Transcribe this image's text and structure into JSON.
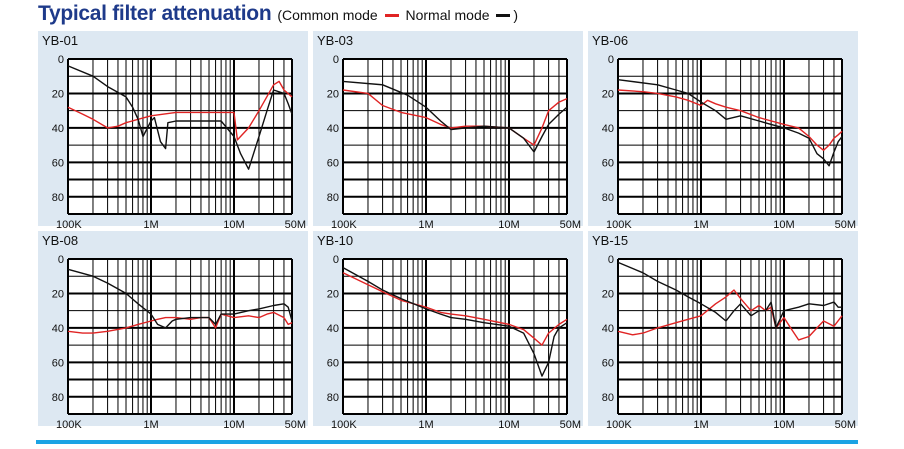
{
  "header": {
    "title": "Typical filter attenuation",
    "legend_prefix": "(Common mode",
    "legend_middle": "Normal mode",
    "legend_suffix": ")"
  },
  "colors": {
    "common_mode": "#e02424",
    "normal_mode": "#111111",
    "panel_bg": "#dde8f2",
    "rule": "#1ba3e4"
  },
  "chart_data": [
    {
      "type": "line",
      "title": "YB-01",
      "x_ticks": [
        "100K",
        "1M",
        "10M",
        "50M"
      ],
      "y_ticks": [
        "0",
        "20",
        "40",
        "60",
        "80"
      ],
      "xlim": [
        "100K",
        "50M"
      ],
      "ylim": [
        0,
        90
      ],
      "x_scale": "log",
      "y_inverted": true,
      "series": [
        {
          "name": "Common mode",
          "color": "#e02424",
          "x": [
            0.1,
            0.15,
            0.2,
            0.3,
            0.4,
            0.5,
            0.7,
            1,
            2,
            5,
            10,
            11,
            15,
            20,
            30,
            35,
            40,
            50
          ],
          "y": [
            28,
            32,
            35,
            40,
            39,
            37,
            35,
            33,
            31,
            31,
            31,
            47,
            40,
            30,
            15,
            13,
            18,
            22
          ]
        },
        {
          "name": "Normal mode",
          "color": "#111111",
          "x": [
            0.1,
            0.2,
            0.3,
            0.5,
            0.6,
            0.7,
            0.8,
            1,
            1.1,
            1.3,
            1.5,
            1.6,
            2,
            5,
            7,
            10,
            12,
            15,
            20,
            25,
            30,
            40,
            45,
            50
          ],
          "y": [
            4,
            10,
            16,
            22,
            28,
            35,
            45,
            36,
            34,
            48,
            52,
            37,
            36,
            36,
            36,
            45,
            55,
            64,
            45,
            30,
            18,
            20,
            26,
            32
          ]
        }
      ]
    },
    {
      "type": "line",
      "title": "YB-03",
      "x_ticks": [
        "100K",
        "1M",
        "10M",
        "50M"
      ],
      "y_ticks": [
        "0",
        "20",
        "40",
        "60",
        "80"
      ],
      "xlim": [
        "100K",
        "50M"
      ],
      "ylim": [
        0,
        90
      ],
      "x_scale": "log",
      "y_inverted": true,
      "series": [
        {
          "name": "Common mode",
          "color": "#e02424",
          "x": [
            0.1,
            0.2,
            0.3,
            0.5,
            1,
            1.5,
            2,
            3,
            5,
            10,
            15,
            20,
            25,
            30,
            40,
            50
          ],
          "y": [
            18,
            20,
            27,
            31,
            34,
            38,
            40,
            39,
            39,
            40,
            46,
            50,
            40,
            30,
            25,
            23
          ]
        },
        {
          "name": "Normal mode",
          "color": "#111111",
          "x": [
            0.1,
            0.3,
            0.6,
            1,
            1.5,
            2,
            3,
            5,
            10,
            15,
            20,
            25,
            30,
            40,
            50
          ],
          "y": [
            13,
            15,
            21,
            28,
            36,
            41,
            40,
            39,
            40,
            46,
            54,
            45,
            38,
            32,
            28
          ]
        }
      ]
    },
    {
      "type": "line",
      "title": "YB-06",
      "x_ticks": [
        "100K",
        "1M",
        "10M",
        "50M"
      ],
      "y_ticks": [
        "0",
        "20",
        "40",
        "60",
        "80"
      ],
      "xlim": [
        "100K",
        "50M"
      ],
      "ylim": [
        0,
        90
      ],
      "x_scale": "log",
      "y_inverted": true,
      "series": [
        {
          "name": "Common mode",
          "color": "#e02424",
          "x": [
            0.1,
            0.2,
            0.3,
            0.5,
            0.7,
            1,
            1.2,
            1.5,
            2,
            3,
            5,
            10,
            15,
            20,
            25,
            30,
            35,
            40,
            45,
            50
          ],
          "y": [
            18,
            19,
            20,
            22,
            24,
            27,
            24,
            26,
            28,
            30,
            34,
            38,
            40,
            45,
            50,
            53,
            50,
            46,
            44,
            42
          ]
        },
        {
          "name": "Normal mode",
          "color": "#111111",
          "x": [
            0.1,
            0.3,
            0.5,
            0.7,
            1,
            1.5,
            2,
            3,
            5,
            7,
            10,
            15,
            20,
            25,
            30,
            35,
            40,
            45,
            50
          ],
          "y": [
            12,
            15,
            18,
            20,
            25,
            30,
            35,
            33,
            36,
            38,
            40,
            43,
            46,
            55,
            58,
            62,
            54,
            48,
            45
          ]
        }
      ]
    },
    {
      "type": "line",
      "title": "YB-08",
      "x_ticks": [
        "100K",
        "1M",
        "10M",
        "50M"
      ],
      "y_ticks": [
        "0",
        "20",
        "40",
        "60",
        "80"
      ],
      "xlim": [
        "100K",
        "50M"
      ],
      "ylim": [
        0,
        90
      ],
      "x_scale": "log",
      "y_inverted": true,
      "series": [
        {
          "name": "Common mode",
          "color": "#e02424",
          "x": [
            0.1,
            0.15,
            0.2,
            0.3,
            0.5,
            0.7,
            1,
            1.2,
            1.5,
            2,
            3,
            4,
            5,
            6,
            7,
            10,
            15,
            20,
            25,
            30,
            40,
            45,
            50
          ],
          "y": [
            42,
            43,
            43,
            42,
            40,
            38,
            36,
            35,
            34,
            34,
            35,
            34,
            34,
            40,
            32,
            34,
            33,
            34,
            32,
            31,
            34,
            38,
            37
          ]
        },
        {
          "name": "Normal mode",
          "color": "#111111",
          "x": [
            0.1,
            0.2,
            0.3,
            0.5,
            0.7,
            1,
            1.2,
            1.5,
            1.8,
            2,
            3,
            4,
            5,
            6,
            7,
            10,
            15,
            20,
            30,
            40,
            45,
            50
          ],
          "y": [
            6,
            10,
            14,
            20,
            26,
            32,
            38,
            40,
            36,
            35,
            34,
            34,
            34,
            38,
            32,
            32,
            30,
            29,
            27,
            26,
            28,
            36
          ]
        }
      ]
    },
    {
      "type": "line",
      "title": "YB-10",
      "x_ticks": [
        "100K",
        "1M",
        "10M",
        "50M"
      ],
      "y_ticks": [
        "0",
        "20",
        "40",
        "60",
        "80"
      ],
      "xlim": [
        "100K",
        "50M"
      ],
      "ylim": [
        0,
        90
      ],
      "x_scale": "log",
      "y_inverted": true,
      "series": [
        {
          "name": "Common mode",
          "color": "#e02424",
          "x": [
            0.1,
            0.2,
            0.3,
            0.5,
            1,
            1.5,
            2,
            3,
            5,
            10,
            15,
            20,
            25,
            30,
            40,
            50
          ],
          "y": [
            8,
            15,
            19,
            24,
            28,
            31,
            32,
            33,
            35,
            38,
            41,
            46,
            50,
            43,
            38,
            35
          ]
        },
        {
          "name": "Normal mode",
          "color": "#111111",
          "x": [
            0.1,
            0.2,
            0.3,
            0.5,
            1,
            1.5,
            2,
            3,
            5,
            10,
            15,
            20,
            25,
            30,
            35,
            40,
            50
          ],
          "y": [
            5,
            13,
            18,
            23,
            29,
            32,
            34,
            35,
            37,
            39,
            43,
            55,
            68,
            60,
            45,
            40,
            37
          ]
        }
      ]
    },
    {
      "type": "line",
      "title": "YB-15",
      "x_ticks": [
        "100K",
        "1M",
        "10M",
        "50M"
      ],
      "y_ticks": [
        "0",
        "20",
        "40",
        "60",
        "80"
      ],
      "xlim": [
        "100K",
        "50M"
      ],
      "ylim": [
        0,
        90
      ],
      "x_scale": "log",
      "y_inverted": true,
      "series": [
        {
          "name": "Common mode",
          "color": "#e02424",
          "x": [
            0.1,
            0.15,
            0.2,
            0.3,
            0.5,
            0.7,
            1,
            1.5,
            2,
            2.5,
            3,
            4,
            5,
            6,
            7,
            8,
            10,
            12,
            15,
            20,
            25,
            30,
            40,
            50
          ],
          "y": [
            42,
            44,
            43,
            40,
            37,
            35,
            33,
            26,
            22,
            18,
            23,
            30,
            27,
            30,
            28,
            40,
            34,
            40,
            47,
            45,
            40,
            36,
            39,
            33
          ]
        },
        {
          "name": "Normal mode",
          "color": "#111111",
          "x": [
            0.1,
            0.2,
            0.3,
            0.5,
            0.7,
            1,
            1.5,
            2,
            2.5,
            3,
            4,
            5,
            6,
            7,
            8,
            10,
            15,
            20,
            30,
            40,
            45,
            50
          ],
          "y": [
            2,
            8,
            13,
            18,
            22,
            26,
            31,
            36,
            30,
            26,
            33,
            30,
            30,
            25,
            40,
            30,
            28,
            26,
            27,
            25,
            28,
            28
          ]
        }
      ]
    }
  ]
}
